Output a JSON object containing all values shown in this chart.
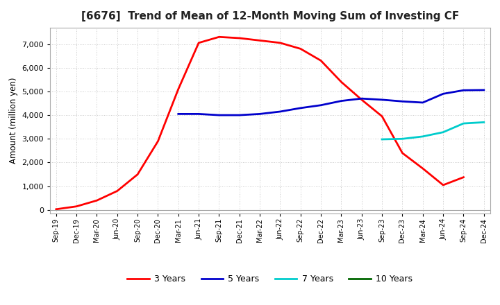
{
  "title": "[6676]  Trend of Mean of 12-Month Moving Sum of Investing CF",
  "ylabel": "Amount (million yen)",
  "background_color": "#ffffff",
  "grid_color": "#bbbbbb",
  "ylim": [
    -150,
    7700
  ],
  "yticks": [
    0,
    1000,
    2000,
    3000,
    4000,
    5000,
    6000,
    7000
  ],
  "x_labels": [
    "Sep-19",
    "Dec-19",
    "Mar-20",
    "Jun-20",
    "Sep-20",
    "Dec-20",
    "Mar-21",
    "Jun-21",
    "Sep-21",
    "Dec-21",
    "Mar-22",
    "Jun-22",
    "Sep-22",
    "Dec-22",
    "Mar-23",
    "Jun-23",
    "Sep-23",
    "Dec-23",
    "Mar-24",
    "Jun-24",
    "Sep-24",
    "Dec-24"
  ],
  "series": {
    "3 Years": {
      "color": "#ff0000",
      "linewidth": 2.0,
      "data_x": [
        0,
        1,
        2,
        3,
        4,
        5,
        6,
        7,
        8,
        9,
        10,
        11,
        12,
        13,
        14,
        15,
        16,
        17,
        18,
        19,
        20
      ],
      "data_y": [
        30,
        150,
        400,
        800,
        1500,
        2900,
        5100,
        7050,
        7300,
        7250,
        7150,
        7050,
        6800,
        6300,
        5400,
        4650,
        3950,
        2400,
        1750,
        1050,
        1380
      ]
    },
    "5 Years": {
      "color": "#0000cc",
      "linewidth": 2.0,
      "data_x": [
        6,
        7,
        8,
        9,
        10,
        11,
        12,
        13,
        14,
        15,
        16,
        17,
        18,
        19,
        20,
        21
      ],
      "data_y": [
        4050,
        4050,
        4000,
        4000,
        4050,
        4150,
        4300,
        4420,
        4600,
        4700,
        4650,
        4580,
        4530,
        4900,
        5050,
        5060
      ]
    },
    "7 Years": {
      "color": "#00cccc",
      "linewidth": 2.0,
      "data_x": [
        16,
        17,
        18,
        19,
        20,
        21
      ],
      "data_y": [
        2980,
        3000,
        3100,
        3280,
        3650,
        3700
      ]
    },
    "10 Years": {
      "color": "#006600",
      "linewidth": 2.0,
      "data_x": [],
      "data_y": []
    }
  },
  "legend_labels": [
    "3 Years",
    "5 Years",
    "7 Years",
    "10 Years"
  ],
  "legend_colors": [
    "#ff0000",
    "#0000cc",
    "#00cccc",
    "#006600"
  ]
}
